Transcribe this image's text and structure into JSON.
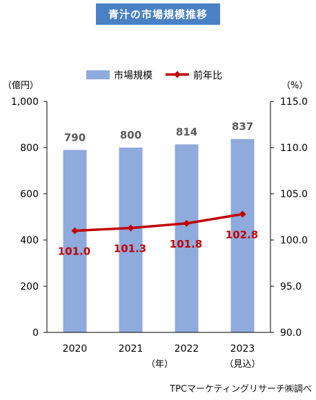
{
  "chart_data": {
    "type": "bar",
    "title": "青汁の市場規模推移",
    "categories": [
      "2020",
      "2021",
      "2022",
      "2023"
    ],
    "category_sublabels": [
      "",
      "",
      "",
      "（見込）"
    ],
    "xlabel": "（年）",
    "ylabel_left": "（億円）",
    "ylabel_right": "（%）",
    "ylim_left": [
      0,
      1000
    ],
    "yticks_left": [
      "0",
      "200",
      "400",
      "600",
      "800",
      "1,000"
    ],
    "ylim_right": [
      90,
      115
    ],
    "yticks_right": [
      "90.0",
      "95.0",
      "100.0",
      "105.0",
      "110.0",
      "115.0"
    ],
    "series": [
      {
        "name": "市場規模",
        "type": "bar",
        "axis": "left",
        "color": "#8faadc",
        "values": [
          790,
          800,
          814,
          837
        ],
        "labels": [
          "790",
          "800",
          "814",
          "837"
        ],
        "label_color": "#595959"
      },
      {
        "name": "前年比",
        "type": "line",
        "axis": "right",
        "color": "#c00000",
        "values": [
          101.0,
          101.3,
          101.8,
          102.8
        ],
        "labels": [
          "101.0",
          "101.3",
          "101.8",
          "102.8"
        ],
        "label_color": "#c00000"
      }
    ],
    "legend_position": "top",
    "grid": false
  },
  "footer": {
    "credit": "TPCマーケティングリサーチ㈱調べ"
  }
}
